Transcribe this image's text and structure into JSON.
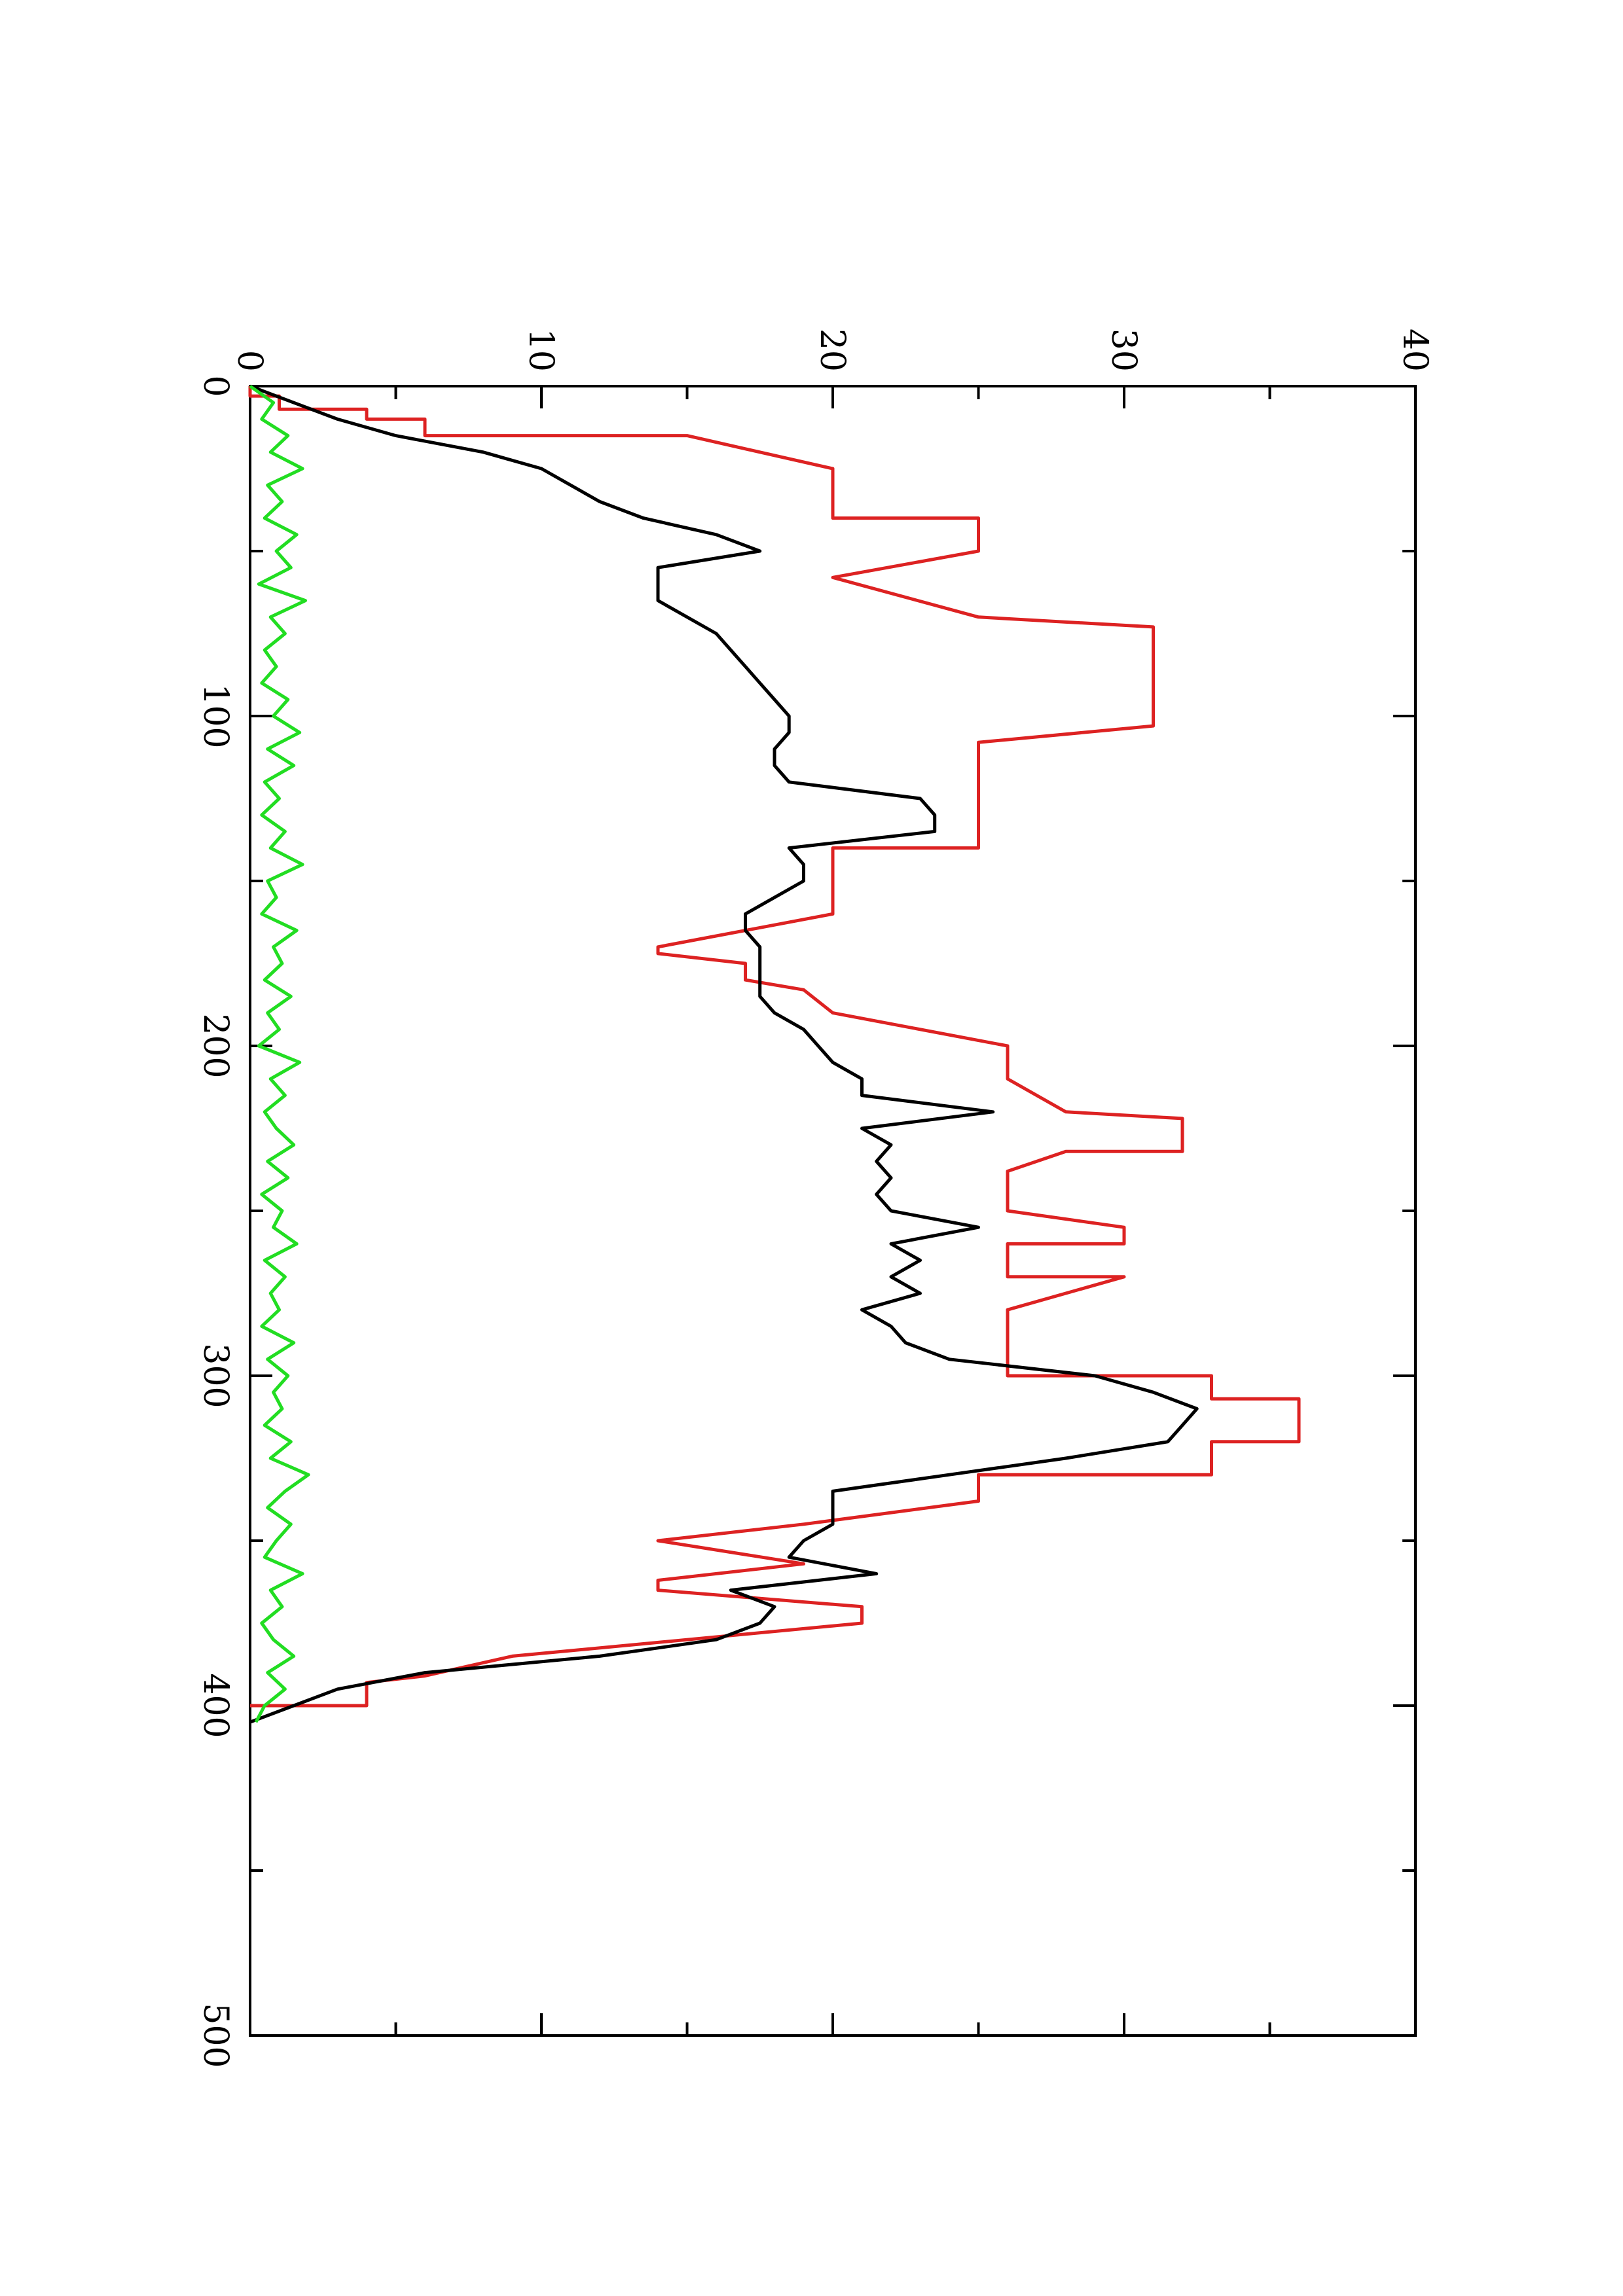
{
  "chart_data": {
    "type": "line",
    "orientation": "rotated-90-ccw",
    "title": "",
    "xlabel": "",
    "ylabel": "",
    "xlim": [
      0,
      500
    ],
    "ylim": [
      0,
      40
    ],
    "x_ticks": [
      0,
      100,
      200,
      300,
      400,
      500
    ],
    "x_tick_labels": [
      "0",
      "100",
      "200",
      "300",
      "400",
      "500"
    ],
    "y_ticks": [
      0,
      10,
      20,
      30,
      40
    ],
    "y_tick_labels": [
      "0",
      "10",
      "20",
      "30",
      "40"
    ],
    "grid": false,
    "legend": "none",
    "series": [
      {
        "color": "#dd2222",
        "x": [
          0,
          3,
          3,
          7,
          7,
          10,
          10,
          15,
          15,
          25,
          25,
          40,
          40,
          50,
          58,
          58,
          70,
          73,
          103,
          108,
          108,
          120,
          130,
          130,
          140,
          140,
          160,
          170,
          172,
          175,
          175,
          180,
          183,
          190,
          190,
          200,
          210,
          210,
          220,
          222,
          232,
          232,
          238,
          250,
          250,
          255,
          260,
          260,
          268,
          270,
          270,
          280,
          300,
          300,
          307,
          307,
          320,
          320,
          330,
          330,
          338,
          345,
          350,
          350,
          357,
          357,
          362,
          365,
          370,
          375,
          375,
          385,
          391,
          393,
          400,
          400
        ],
        "y": [
          0,
          0,
          1,
          1,
          4,
          4,
          6,
          6,
          15,
          20,
          20,
          20,
          25,
          25,
          20,
          20,
          25,
          31,
          31,
          25,
          25,
          25,
          25,
          25,
          25,
          20,
          20,
          14,
          14,
          17,
          17,
          17,
          19,
          20,
          20,
          26,
          26,
          26,
          28,
          32,
          32,
          28,
          26,
          26,
          26,
          30,
          30,
          26,
          26,
          26,
          30,
          26,
          26,
          33,
          33,
          36,
          36,
          33,
          33,
          25,
          25,
          19,
          14,
          14,
          19,
          19,
          14,
          14,
          21,
          21,
          21,
          9,
          6,
          4,
          4,
          0
        ]
      },
      {
        "color": "#000000",
        "x": [
          0,
          5,
          10,
          15,
          20,
          25,
          30,
          35,
          40,
          45,
          50,
          55,
          60,
          65,
          70,
          75,
          80,
          85,
          90,
          95,
          100,
          105,
          110,
          115,
          120,
          125,
          130,
          135,
          140,
          145,
          150,
          155,
          160,
          165,
          170,
          175,
          180,
          185,
          190,
          195,
          200,
          205,
          210,
          215,
          220,
          225,
          230,
          235,
          240,
          245,
          250,
          255,
          260,
          265,
          270,
          275,
          280,
          285,
          290,
          295,
          300,
          305,
          310,
          315,
          320,
          325,
          330,
          335,
          340,
          345,
          350,
          355,
          360,
          365,
          370,
          375,
          380,
          385,
          390,
          395,
          400,
          405
        ],
        "y": [
          0,
          1.5,
          3,
          5,
          8,
          10,
          11,
          12,
          13.5,
          16,
          17.5,
          14,
          14,
          14,
          15,
          16,
          16.5,
          17,
          17.5,
          18,
          18.5,
          18.5,
          18,
          18,
          18.5,
          23,
          23.5,
          23.5,
          18.5,
          19,
          19,
          18,
          17,
          17,
          17.5,
          17.5,
          17.5,
          17.5,
          18,
          19,
          19.5,
          20,
          21,
          21,
          25.5,
          21,
          22,
          21.5,
          22,
          21.5,
          22,
          25,
          22,
          23,
          22,
          23,
          21,
          22,
          22.5,
          24,
          29,
          31,
          32.5,
          32,
          31.5,
          28,
          24,
          20,
          20,
          20,
          19,
          18.5,
          21.5,
          16.5,
          18,
          17.5,
          16,
          12,
          6,
          3,
          1.5,
          0
        ]
      },
      {
        "color": "#22dd22",
        "x": [
          0,
          5,
          10,
          15,
          20,
          25,
          30,
          35,
          40,
          45,
          50,
          55,
          60,
          65,
          70,
          75,
          80,
          85,
          90,
          95,
          100,
          105,
          110,
          115,
          120,
          125,
          130,
          135,
          140,
          145,
          150,
          155,
          160,
          165,
          170,
          175,
          180,
          185,
          190,
          195,
          200,
          205,
          210,
          215,
          220,
          225,
          230,
          235,
          240,
          245,
          250,
          255,
          260,
          265,
          270,
          275,
          280,
          285,
          290,
          295,
          300,
          305,
          310,
          315,
          320,
          325,
          330,
          335,
          340,
          345,
          350,
          355,
          360,
          365,
          370,
          375,
          380,
          385,
          390,
          395,
          400,
          405
        ],
        "y": [
          0,
          0.8,
          0.4,
          1.3,
          0.7,
          1.8,
          0.6,
          1.1,
          0.5,
          1.6,
          0.9,
          1.4,
          0.3,
          1.9,
          0.7,
          1.2,
          0.5,
          0.9,
          0.4,
          1.3,
          0.8,
          1.7,
          0.6,
          1.5,
          0.5,
          1.0,
          0.4,
          1.2,
          0.7,
          1.8,
          0.6,
          0.9,
          0.4,
          1.6,
          0.8,
          1.1,
          0.5,
          1.4,
          0.6,
          1.0,
          0.3,
          1.7,
          0.7,
          1.2,
          0.5,
          0.9,
          1.5,
          0.6,
          1.3,
          0.4,
          1.1,
          0.8,
          1.6,
          0.5,
          1.2,
          0.7,
          1.0,
          0.4,
          1.5,
          0.6,
          1.3,
          0.8,
          1.1,
          0.5,
          1.4,
          0.7,
          2.0,
          1.2,
          0.6,
          1.4,
          0.9,
          0.5,
          1.8,
          0.7,
          1.1,
          0.4,
          0.8,
          1.5,
          0.6,
          1.2,
          0.5,
          0.2
        ]
      }
    ]
  }
}
